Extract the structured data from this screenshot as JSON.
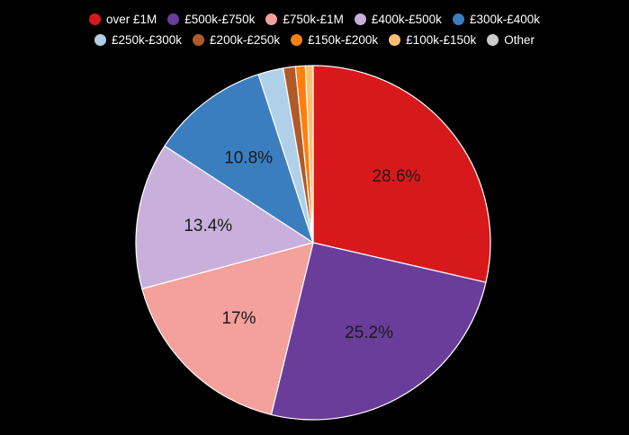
{
  "chart_data": {
    "type": "pie",
    "start_angle_deg": 0,
    "direction": "clockwise",
    "legend_position": "top",
    "slices": [
      {
        "label": "over £1M",
        "value": 28.6,
        "display": "28.6%",
        "color": "#d7191c"
      },
      {
        "label": "£500k-£750k",
        "value": 25.2,
        "display": "25.2%",
        "color": "#6a3d9a"
      },
      {
        "label": "£750k-£1M",
        "value": 17,
        "display": "17%",
        "color": "#f4a09c"
      },
      {
        "label": "£400k-£500k",
        "value": 13.4,
        "display": "13.4%",
        "color": "#c9b0dc"
      },
      {
        "label": "£300k-£400k",
        "value": 10.8,
        "display": "10.8%",
        "color": "#3a7ebf"
      },
      {
        "label": "£250k-£300k",
        "value": 2.3,
        "display": "",
        "color": "#b0d0ea"
      },
      {
        "label": "£200k-£250k",
        "value": 1.1,
        "display": "",
        "color": "#b15928"
      },
      {
        "label": "£150k-£200k",
        "value": 0.9,
        "display": "",
        "color": "#ff7f0e"
      },
      {
        "label": "£100k-£150k",
        "value": 0.7,
        "display": "",
        "color": "#fdbf6f"
      },
      {
        "label": "Other",
        "value": 0.0,
        "display": "",
        "color": "#cccccc"
      }
    ]
  }
}
